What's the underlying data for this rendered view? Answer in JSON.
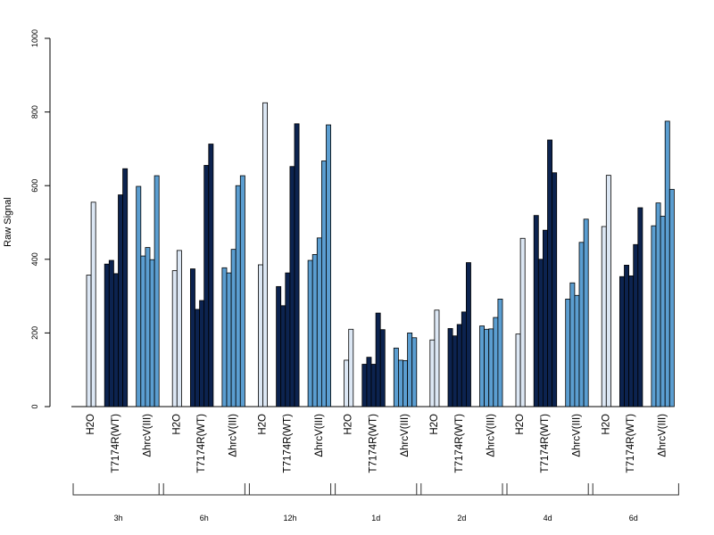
{
  "chart_data": {
    "type": "bar",
    "ylabel": "Raw Signal",
    "ylim": [
      0,
      1000
    ],
    "yticks": [
      "0",
      "200",
      "400",
      "600",
      "800",
      "1000"
    ],
    "treatments": [
      {
        "name": "H2O",
        "color": "#dce7f4"
      },
      {
        "name": "T7174R(WT)",
        "color": "#0c234f"
      },
      {
        "name": "ΔhrcV(III)",
        "color": "#5b9ed1"
      }
    ],
    "timepoints": [
      {
        "label": "3h",
        "values": [
          [
            357,
            555
          ],
          [
            387,
            397,
            361,
            575,
            646
          ],
          [
            598,
            409,
            432,
            399,
            627
          ]
        ]
      },
      {
        "label": "6h",
        "values": [
          [
            369,
            424
          ],
          [
            374,
            264,
            288,
            655,
            713
          ],
          [
            377,
            363,
            427,
            600,
            627
          ]
        ]
      },
      {
        "label": "12h",
        "values": [
          [
            385,
            825
          ],
          [
            326,
            274,
            363,
            652,
            768
          ],
          [
            397,
            413,
            458,
            667,
            765
          ]
        ]
      },
      {
        "label": "1d",
        "values": [
          [
            126,
            210
          ],
          [
            115,
            134,
            115,
            254,
            209
          ],
          [
            159,
            126,
            125,
            200,
            187
          ]
        ]
      },
      {
        "label": "2d",
        "values": [
          [
            181,
            262
          ],
          [
            212,
            192,
            223,
            257,
            391
          ],
          [
            219,
            210,
            211,
            242,
            292
          ]
        ]
      },
      {
        "label": "4d",
        "values": [
          [
            197,
            457
          ],
          [
            519,
            400,
            479,
            724,
            635
          ],
          [
            292,
            336,
            302,
            446,
            509
          ]
        ]
      },
      {
        "label": "6d",
        "values": [
          [
            489,
            628
          ],
          [
            353,
            384,
            355,
            440,
            540
          ],
          [
            491,
            553,
            517,
            775,
            590
          ]
        ]
      }
    ]
  }
}
